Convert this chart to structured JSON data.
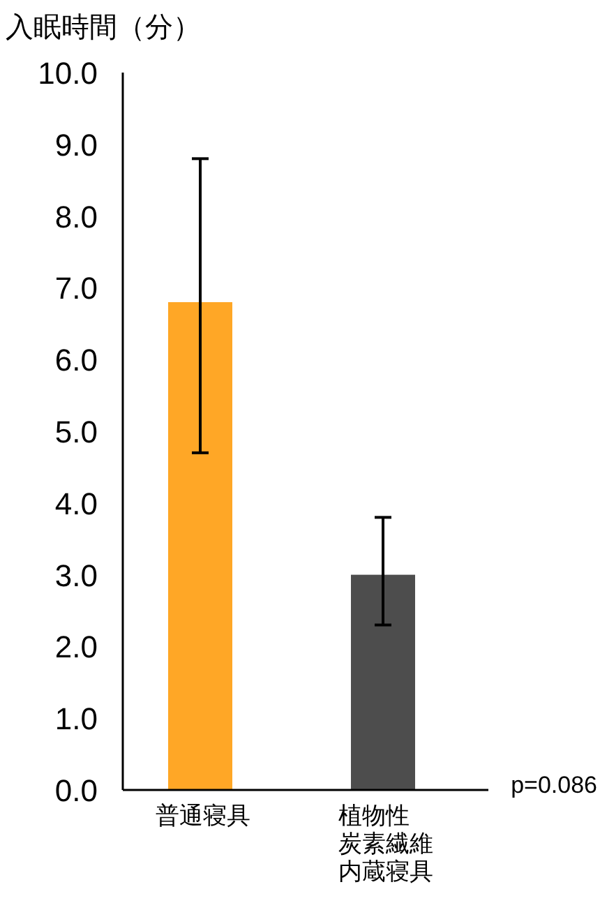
{
  "chart_data": {
    "type": "bar",
    "ylabel": "入眠時間（分）",
    "categories": [
      "普通寝具",
      "植物性炭素繊維内蔵寝具"
    ],
    "values": [
      6.8,
      3.0
    ],
    "colors": [
      "#ffa726",
      "#4d4d4d"
    ],
    "errors": [
      [
        4.7,
        8.8
      ],
      [
        2.3,
        3.8
      ]
    ],
    "ylim": [
      0,
      10
    ],
    "yticks": [
      {
        "value": 0,
        "label": "0.0"
      },
      {
        "value": 1,
        "label": "1.0"
      },
      {
        "value": 2,
        "label": "2.0"
      },
      {
        "value": 3,
        "label": "3.0"
      },
      {
        "value": 4,
        "label": "4.0"
      },
      {
        "value": 5,
        "label": "5.0"
      },
      {
        "value": 6,
        "label": "6.0"
      },
      {
        "value": 7,
        "label": "7.0"
      },
      {
        "value": 8,
        "label": "8.0"
      },
      {
        "value": 9,
        "label": "9.0"
      },
      {
        "value": 10,
        "label": "10.0"
      }
    ],
    "annotations": [
      "p=0.086"
    ],
    "grid": false
  }
}
